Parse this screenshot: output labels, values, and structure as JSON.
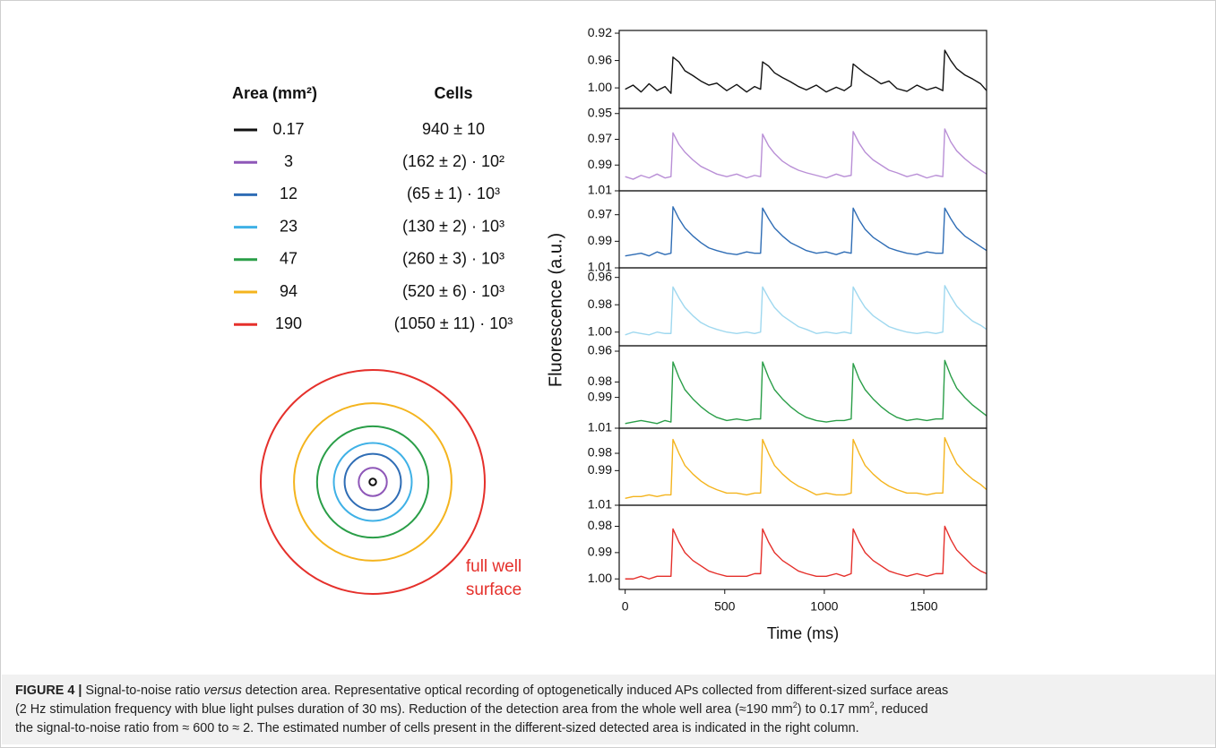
{
  "legend": {
    "header": [
      "Area (mm²)",
      "Cells"
    ],
    "rows": [
      {
        "area": 0.17,
        "cells": "940 ± 10",
        "color": "#111111"
      },
      {
        "area": 3,
        "cells": "(162 ± 2) · 10²",
        "color": "#8e57b8"
      },
      {
        "area": 12,
        "cells": "(65 ±  1) · 10³",
        "color": "#2f6db5"
      },
      {
        "area": 23,
        "cells": "(130 ± 2) · 10³",
        "color": "#3fb1e6"
      },
      {
        "area": 47,
        "cells": "(260 ± 3) · 10³",
        "color": "#2a9e48"
      },
      {
        "area": 94,
        "cells": "(520 ± 6) · 10³",
        "color": "#f4b41e"
      },
      {
        "area": 190,
        "cells": "(1050 ± 11) · 10³",
        "color": "#e5302b"
      }
    ],
    "annotation": [
      "full well",
      "surface"
    ]
  },
  "chart_data": [
    {
      "type": "line",
      "color": "#111111",
      "xlim": [
        -30,
        1815
      ],
      "ylim": [
        1.03,
        0.916
      ],
      "yticks": [
        0.92,
        0.96,
        {
          "value": 1,
          "label": "1.00"
        }
      ],
      "x": [
        0,
        40,
        80,
        120,
        160,
        200,
        230,
        240,
        270,
        300,
        340,
        380,
        420,
        460,
        510,
        560,
        610,
        650,
        680,
        690,
        720,
        750,
        790,
        830,
        870,
        910,
        960,
        1010,
        1060,
        1100,
        1135,
        1145,
        1175,
        1205,
        1245,
        1285,
        1325,
        1365,
        1415,
        1465,
        1515,
        1560,
        1595,
        1605,
        1635,
        1665,
        1705,
        1745,
        1785,
        1815
      ],
      "values": [
        1.002,
        0.996,
        1.006,
        0.994,
        1.004,
        0.998,
        1.008,
        0.955,
        0.962,
        0.975,
        0.982,
        0.99,
        0.996,
        0.993,
        1.004,
        0.995,
        1.006,
        0.998,
        1.002,
        0.962,
        0.968,
        0.978,
        0.985,
        0.991,
        0.998,
        1.003,
        0.996,
        1.006,
        0.999,
        1.004,
        0.997,
        0.965,
        0.972,
        0.979,
        0.986,
        0.994,
        0.99,
        1.001,
        1.005,
        0.996,
        1.003,
        0.999,
        1.004,
        0.945,
        0.96,
        0.972,
        0.981,
        0.987,
        0.994,
        1.004
      ]
    },
    {
      "type": "line",
      "color": "#b98fd6",
      "xlim": [
        -30,
        1815
      ],
      "ylim": [
        1.01,
        0.946
      ],
      "yticks": [
        0.95,
        0.97,
        0.99,
        1.01
      ],
      "x": [
        0,
        40,
        80,
        120,
        160,
        200,
        230,
        240,
        270,
        300,
        340,
        380,
        420,
        460,
        510,
        560,
        610,
        650,
        680,
        690,
        720,
        750,
        790,
        830,
        870,
        910,
        960,
        1010,
        1060,
        1100,
        1135,
        1145,
        1175,
        1205,
        1245,
        1285,
        1325,
        1365,
        1415,
        1465,
        1515,
        1560,
        1595,
        1605,
        1635,
        1665,
        1705,
        1745,
        1785,
        1815
      ],
      "values": [
        0.999,
        1.001,
        0.998,
        1.0,
        0.997,
        1.0,
        0.999,
        0.965,
        0.974,
        0.98,
        0.986,
        0.991,
        0.994,
        0.997,
        0.999,
        0.997,
        1.0,
        0.998,
        0.999,
        0.966,
        0.975,
        0.981,
        0.987,
        0.991,
        0.994,
        0.996,
        0.998,
        1.0,
        0.997,
        0.999,
        0.998,
        0.964,
        0.973,
        0.98,
        0.986,
        0.99,
        0.994,
        0.996,
        0.999,
        0.997,
        1.0,
        0.998,
        0.999,
        0.962,
        0.972,
        0.979,
        0.985,
        0.99,
        0.994,
        0.997
      ]
    },
    {
      "type": "line",
      "color": "#2f6db5",
      "xlim": [
        -30,
        1815
      ],
      "ylim": [
        1.01,
        0.952
      ],
      "yticks": [
        0.97,
        0.99,
        1.01
      ],
      "x": [
        0,
        40,
        80,
        120,
        160,
        200,
        230,
        240,
        270,
        300,
        340,
        380,
        420,
        460,
        510,
        560,
        610,
        650,
        680,
        690,
        720,
        750,
        790,
        830,
        870,
        910,
        960,
        1010,
        1060,
        1100,
        1135,
        1145,
        1175,
        1205,
        1245,
        1285,
        1325,
        1365,
        1415,
        1465,
        1515,
        1560,
        1595,
        1605,
        1635,
        1665,
        1705,
        1745,
        1785,
        1815
      ],
      "values": [
        1.001,
        1.0,
        0.999,
        1.001,
        0.998,
        1.0,
        0.999,
        0.964,
        0.973,
        0.98,
        0.986,
        0.991,
        0.995,
        0.997,
        0.999,
        1.0,
        0.998,
        0.999,
        0.999,
        0.965,
        0.973,
        0.98,
        0.986,
        0.991,
        0.994,
        0.997,
        0.999,
        0.998,
        1.0,
        0.998,
        0.999,
        0.965,
        0.974,
        0.981,
        0.987,
        0.991,
        0.995,
        0.997,
        0.999,
        1.0,
        0.998,
        0.999,
        0.999,
        0.965,
        0.973,
        0.98,
        0.986,
        0.99,
        0.994,
        0.997
      ]
    },
    {
      "type": "line",
      "color": "#9fd8ef",
      "xlim": [
        -30,
        1815
      ],
      "ylim": [
        1.01,
        0.953
      ],
      "yticks": [
        0.96,
        0.98,
        {
          "value": 1,
          "label": "1.00"
        }
      ],
      "ylabel": "Fluorescence (a.u.)",
      "x": [
        0,
        40,
        80,
        120,
        160,
        200,
        230,
        240,
        270,
        300,
        340,
        380,
        420,
        460,
        510,
        560,
        610,
        650,
        680,
        690,
        720,
        750,
        790,
        830,
        870,
        910,
        960,
        1010,
        1060,
        1100,
        1135,
        1145,
        1175,
        1205,
        1245,
        1285,
        1325,
        1365,
        1415,
        1465,
        1515,
        1560,
        1595,
        1605,
        1635,
        1665,
        1705,
        1745,
        1785,
        1815
      ],
      "values": [
        1.002,
        1.0,
        1.001,
        1.002,
        1.0,
        1.001,
        1.001,
        0.967,
        0.975,
        0.982,
        0.988,
        0.993,
        0.996,
        0.998,
        1.0,
        1.001,
        1.0,
        1.001,
        1.0,
        0.967,
        0.975,
        0.982,
        0.988,
        0.992,
        0.996,
        0.998,
        1.001,
        1.0,
        1.001,
        1.0,
        1.001,
        0.967,
        0.975,
        0.982,
        0.988,
        0.992,
        0.996,
        0.998,
        1.0,
        1.001,
        1.0,
        1.001,
        1.0,
        0.966,
        0.974,
        0.981,
        0.987,
        0.992,
        0.995,
        0.998
      ]
    },
    {
      "type": "line",
      "color": "#2a9e48",
      "xlim": [
        -30,
        1815
      ],
      "ylim": [
        1.01,
        0.9565
      ],
      "yticks": [
        0.96,
        0.98,
        0.99,
        1.01
      ],
      "x": [
        0,
        40,
        80,
        120,
        160,
        200,
        230,
        240,
        270,
        300,
        340,
        380,
        420,
        460,
        510,
        560,
        610,
        650,
        680,
        690,
        720,
        750,
        790,
        830,
        870,
        910,
        960,
        1010,
        1060,
        1100,
        1135,
        1145,
        1175,
        1205,
        1245,
        1285,
        1325,
        1365,
        1415,
        1465,
        1515,
        1560,
        1595,
        1605,
        1635,
        1665,
        1705,
        1745,
        1785,
        1815
      ],
      "values": [
        1.007,
        1.006,
        1.005,
        1.006,
        1.007,
        1.005,
        1.006,
        0.967,
        0.977,
        0.985,
        0.991,
        0.996,
        1.0,
        1.003,
        1.005,
        1.004,
        1.005,
        1.004,
        1.004,
        0.967,
        0.977,
        0.985,
        0.991,
        0.996,
        1.0,
        1.003,
        1.005,
        1.006,
        1.005,
        1.005,
        1.004,
        0.968,
        0.978,
        0.985,
        0.991,
        0.996,
        1.0,
        1.003,
        1.005,
        1.004,
        1.005,
        1.004,
        1.004,
        0.966,
        0.976,
        0.984,
        0.99,
        0.995,
        0.999,
        1.002
      ]
    },
    {
      "type": "line",
      "color": "#f4b41e",
      "xlim": [
        -30,
        1815
      ],
      "ylim": [
        1.01,
        0.9655
      ],
      "yticks": [
        0.98,
        0.99,
        1.01
      ],
      "x": [
        0,
        40,
        80,
        120,
        160,
        200,
        230,
        240,
        270,
        300,
        340,
        380,
        420,
        460,
        510,
        560,
        610,
        650,
        680,
        690,
        720,
        750,
        790,
        830,
        870,
        910,
        960,
        1010,
        1060,
        1100,
        1135,
        1145,
        1175,
        1205,
        1245,
        1285,
        1325,
        1365,
        1415,
        1465,
        1515,
        1560,
        1595,
        1605,
        1635,
        1665,
        1705,
        1745,
        1785,
        1815
      ],
      "values": [
        1.006,
        1.005,
        1.005,
        1.004,
        1.005,
        1.004,
        1.004,
        0.972,
        0.98,
        0.987,
        0.992,
        0.996,
        0.999,
        1.001,
        1.003,
        1.003,
        1.004,
        1.003,
        1.003,
        0.972,
        0.98,
        0.987,
        0.992,
        0.996,
        0.999,
        1.001,
        1.004,
        1.003,
        1.004,
        1.004,
        1.003,
        0.972,
        0.98,
        0.987,
        0.992,
        0.996,
        0.999,
        1.001,
        1.003,
        1.003,
        1.004,
        1.003,
        1.003,
        0.971,
        0.979,
        0.986,
        0.991,
        0.995,
        0.998,
        1.001
      ]
    },
    {
      "type": "line",
      "color": "#e5302b",
      "xlim": [
        -30,
        1815
      ],
      "ylim": [
        1.004,
        0.972
      ],
      "yticks": [
        0.98,
        0.99,
        {
          "value": 1,
          "label": "1.00"
        }
      ],
      "xticks": [
        0,
        500,
        1000,
        1500
      ],
      "xlabel": "Time (ms)",
      "x": [
        0,
        40,
        80,
        120,
        160,
        200,
        230,
        240,
        270,
        300,
        340,
        380,
        420,
        460,
        510,
        560,
        610,
        650,
        680,
        690,
        720,
        750,
        790,
        830,
        870,
        910,
        960,
        1010,
        1060,
        1100,
        1135,
        1145,
        1175,
        1205,
        1245,
        1285,
        1325,
        1365,
        1415,
        1465,
        1515,
        1560,
        1595,
        1605,
        1635,
        1665,
        1705,
        1745,
        1785,
        1815
      ],
      "values": [
        1.0,
        1.0,
        0.999,
        1.0,
        0.999,
        0.999,
        0.999,
        0.981,
        0.986,
        0.99,
        0.993,
        0.995,
        0.997,
        0.998,
        0.999,
        0.999,
        0.999,
        0.998,
        0.998,
        0.981,
        0.986,
        0.99,
        0.993,
        0.995,
        0.997,
        0.998,
        0.999,
        0.999,
        0.998,
        0.999,
        0.998,
        0.981,
        0.986,
        0.99,
        0.993,
        0.995,
        0.997,
        0.998,
        0.999,
        0.998,
        0.999,
        0.998,
        0.998,
        0.98,
        0.985,
        0.989,
        0.992,
        0.995,
        0.997,
        0.998
      ]
    }
  ],
  "caption": {
    "label": "FIGURE 4 |",
    "runs": [
      "Signal-to-noise ratio ",
      "versus",
      " detection area. Representative optical recording of optogenetically induced APs collected from different-sized surface areas",
      "(2 Hz stimulation frequency with blue light pulses duration of 30 ms). Reduction of the detection area from the whole well area (≈190 mm",
      "2",
      ") to 0.17 mm",
      "2",
      ", reduced",
      "the signal-to-noise ratio from ≈ 600 to ≈ 2. The estimated number of cells present in the different-sized detected area is indicated in the right column."
    ]
  }
}
